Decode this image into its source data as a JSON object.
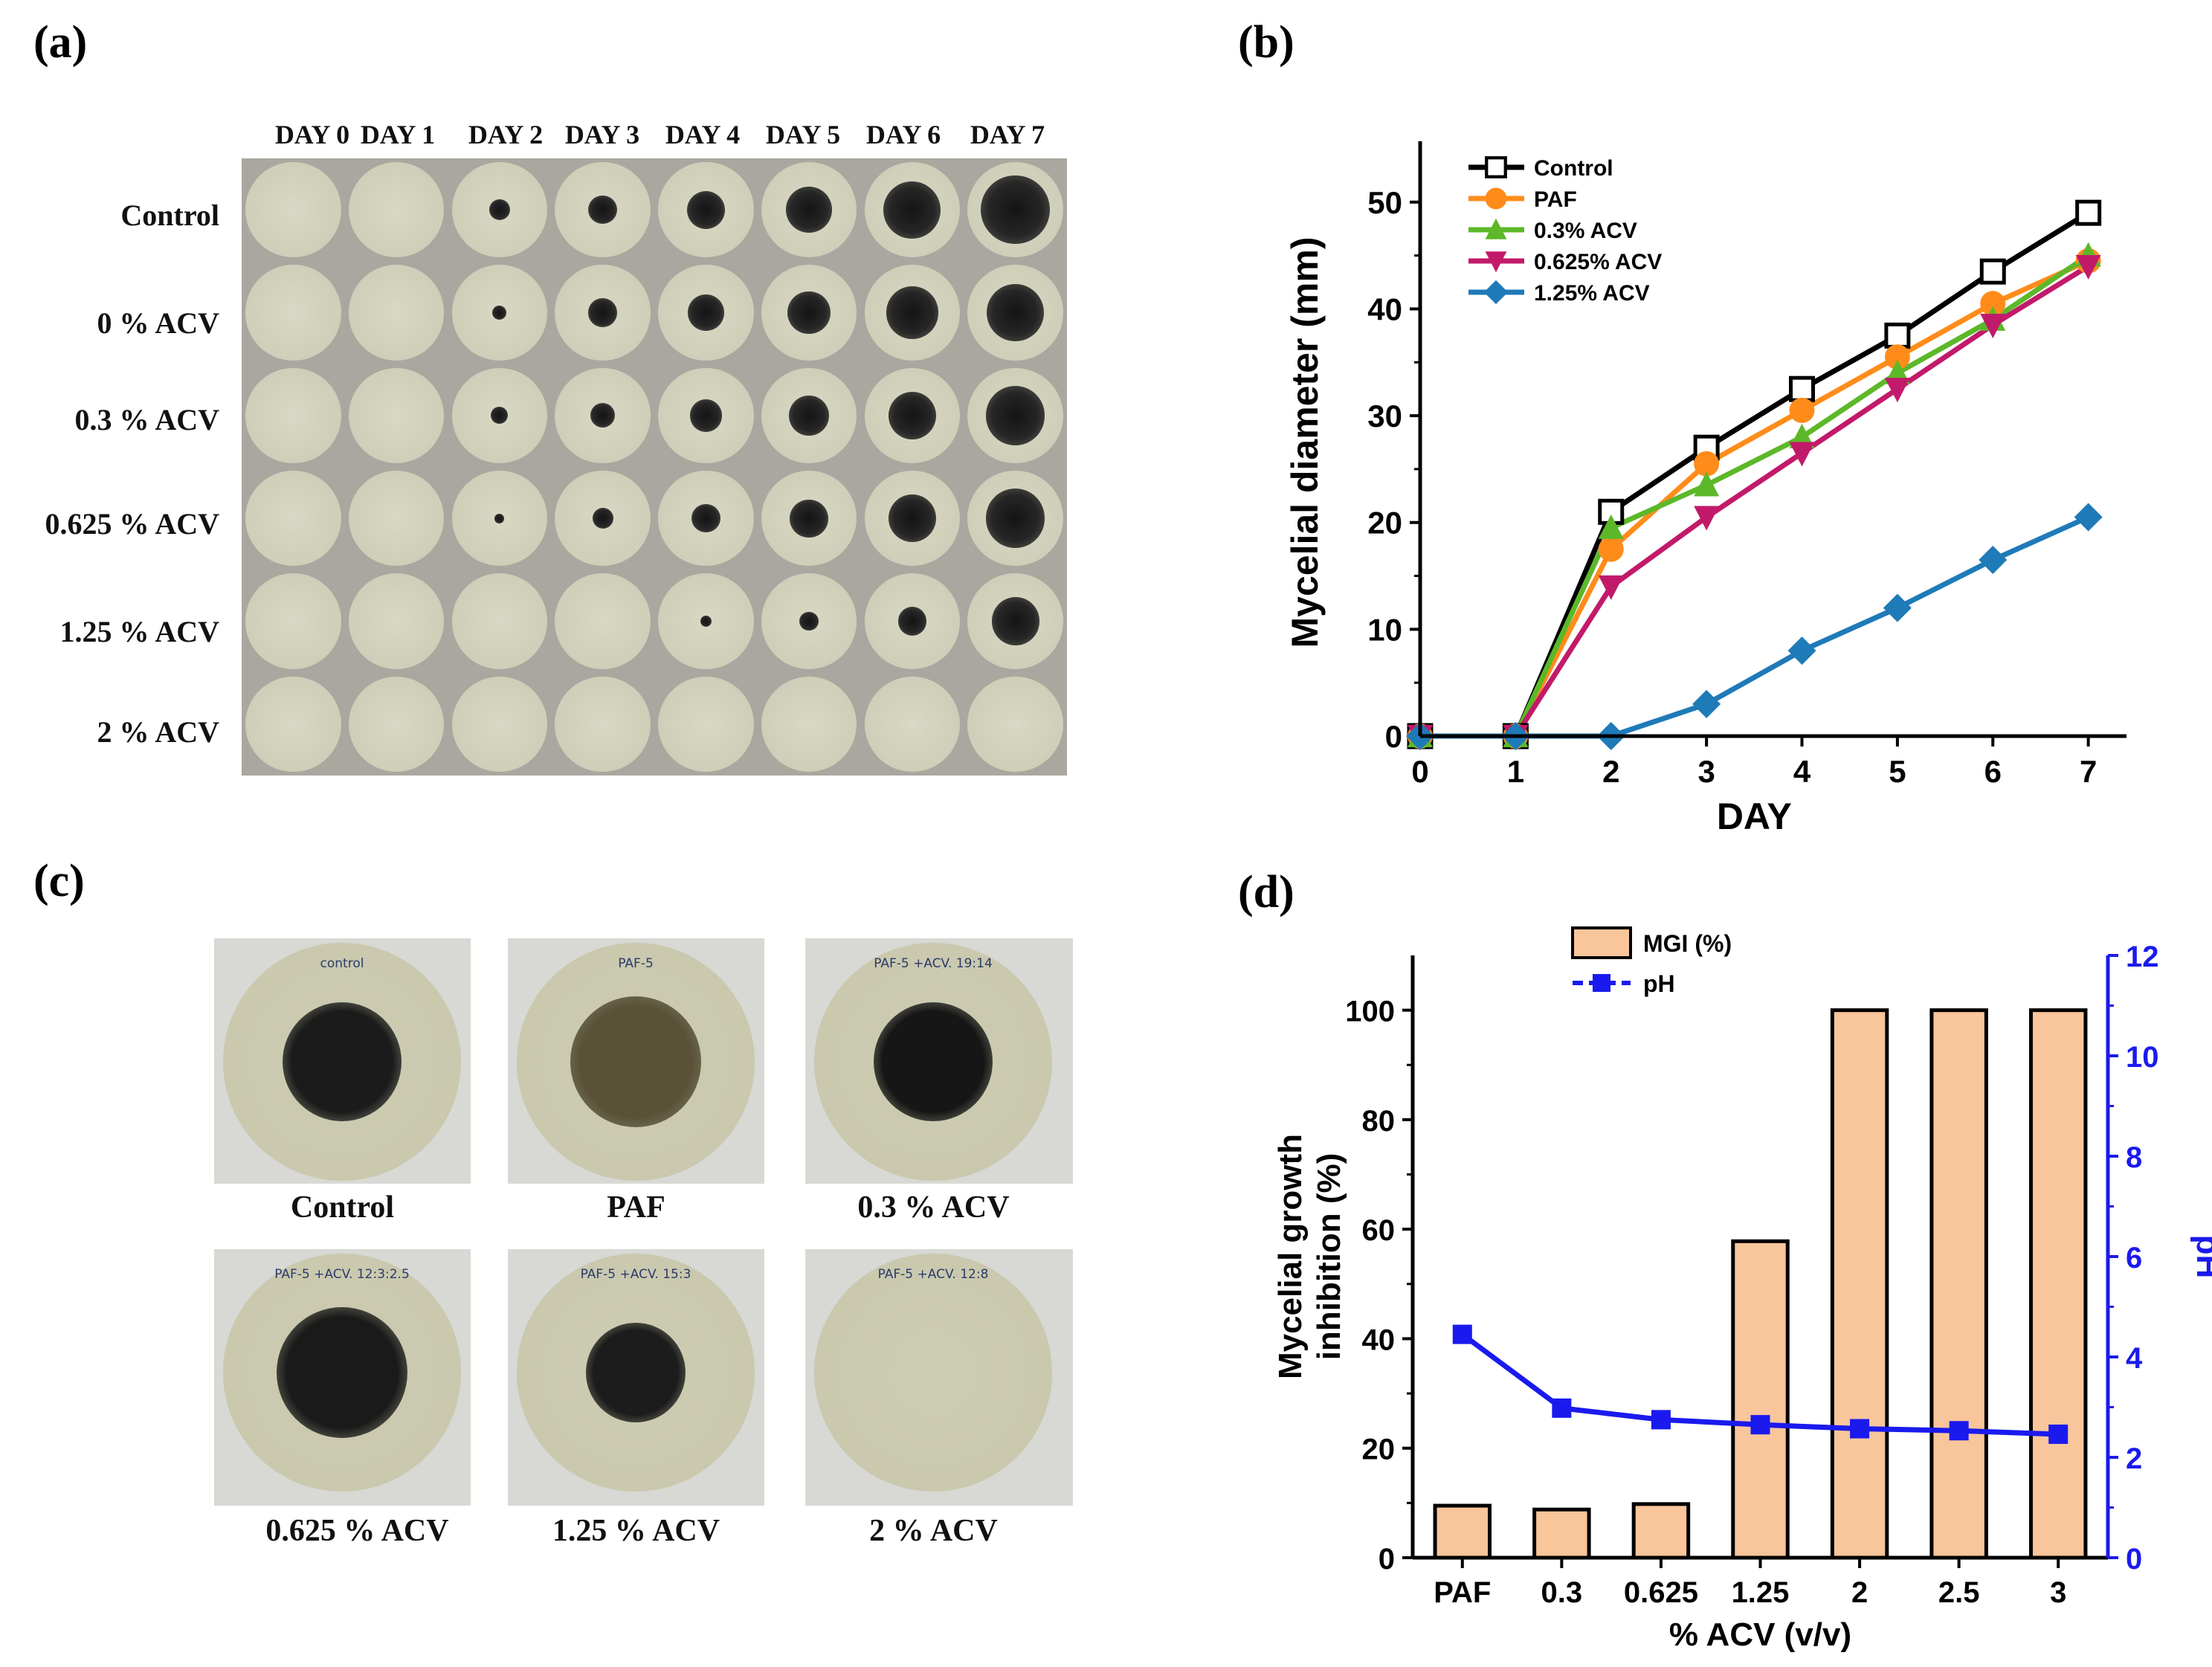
{
  "panel_a": {
    "label": "(a)",
    "days": [
      "DAY 0",
      "DAY 1",
      "DAY 2",
      "DAY 3",
      "DAY 4",
      "DAY 5",
      "DAY 6",
      "DAY 7"
    ],
    "rows": [
      "Control",
      "0 % ACV",
      "0.3 % ACV",
      "0.625 % ACV",
      "1.25 % ACV",
      "2 % ACV"
    ]
  },
  "panel_b": {
    "label": "(b)"
  },
  "panel_c": {
    "label": "(c)",
    "captions": [
      "Control",
      "PAF",
      "0.3 % ACV",
      "0.625 % ACV",
      "1.25 % ACV",
      "2 % ACV"
    ],
    "plate_notes": [
      "control",
      "PAF-5",
      "PAF-5 +ACV. 19:14",
      "PAF-5 +ACV. 12:3:2.5",
      "PAF-5 +ACV. 15:3",
      "PAF-5 +ACV. 12:8"
    ]
  },
  "panel_d": {
    "label": "(d)"
  },
  "colors": {
    "control": "#000000",
    "paf": "#ff8c1a",
    "acv03": "#5cb829",
    "acv0625": "#c21a6a",
    "acv125": "#1f7ab8",
    "bar": "#f9c59a",
    "ph": "#1a1aee"
  },
  "chart_data": [
    {
      "type": "line",
      "title": "",
      "xlabel": "DAY",
      "ylabel": "Mycelial diameter (mm)",
      "x": [
        0,
        1,
        2,
        3,
        4,
        5,
        6,
        7
      ],
      "xlim": [
        0,
        7.4
      ],
      "ylim": [
        0,
        55
      ],
      "xticks": [
        "0",
        "1",
        "2",
        "3",
        "4",
        "5",
        "6",
        "7"
      ],
      "yticks": [
        "0",
        "10",
        "20",
        "30",
        "40",
        "50"
      ],
      "legend_position": "top-left",
      "series": [
        {
          "name": "Control",
          "marker": "square-open",
          "color": "#000000",
          "values": [
            0,
            0,
            21,
            27,
            32.5,
            37.5,
            43.5,
            49
          ]
        },
        {
          "name": "PAF",
          "marker": "circle",
          "color": "#ff8c1a",
          "values": [
            0,
            0,
            17.5,
            25.5,
            30.5,
            35.5,
            40.5,
            44.5
          ]
        },
        {
          "name": "0.3% ACV",
          "marker": "triangle-up",
          "color": "#5cb829",
          "values": [
            0,
            0,
            19.5,
            23.5,
            28,
            34,
            39,
            45
          ]
        },
        {
          "name": "0.625% ACV",
          "marker": "triangle-down",
          "color": "#c21a6a",
          "values": [
            0,
            0,
            14,
            20.5,
            26.5,
            32.5,
            38.5,
            44
          ]
        },
        {
          "name": "1.25% ACV",
          "marker": "diamond",
          "color": "#1f7ab8",
          "values": [
            0,
            0,
            0,
            3,
            8,
            12,
            16.5,
            20.5
          ]
        }
      ]
    },
    {
      "type": "bar",
      "title": "",
      "xlabel": "% ACV (v/v)",
      "ylabel": "Mycelial growth inhibition (%)",
      "y2label": "pH",
      "categories": [
        "PAF",
        "0.3",
        "0.625",
        "1.25",
        "2",
        "2.5",
        "3"
      ],
      "ylim": [
        0,
        110
      ],
      "y2lim": [
        0,
        12
      ],
      "yticks": [
        "0",
        "20",
        "40",
        "60",
        "80",
        "100"
      ],
      "y2ticks": [
        "0",
        "2",
        "4",
        "6",
        "8",
        "10",
        "12"
      ],
      "legend_position": "top-left",
      "series": [
        {
          "name": "MGI (%)",
          "axis": "left",
          "kind": "bar",
          "values": [
            9.5,
            8.8,
            9.8,
            57.8,
            100,
            100,
            100
          ]
        },
        {
          "name": "pH",
          "axis": "right",
          "kind": "line",
          "values": [
            4.45,
            2.98,
            2.75,
            2.65,
            2.57,
            2.53,
            2.46
          ]
        }
      ]
    }
  ]
}
